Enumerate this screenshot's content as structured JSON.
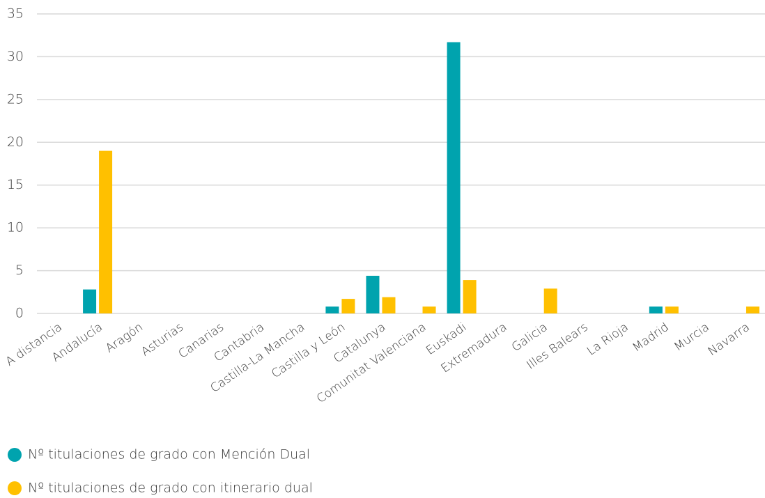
{
  "chart_data": {
    "type": "bar",
    "categories": [
      "A distancia",
      "Andalucía",
      "Aragón",
      "Asturias",
      "Canarias",
      "Cantabria",
      "Castilla-La Mancha",
      "Castilla y León",
      "Catalunya",
      "Comunitat Valenciana",
      "Euskadi",
      "Extremadura",
      "Galicia",
      "Illes Balears",
      "La Rioja",
      "Madrid",
      "Murcia",
      "Navarra"
    ],
    "series": [
      {
        "name": "Nº titulaciones de grado con Mención Dual",
        "color": "#00a3ae",
        "values": [
          0,
          2.8,
          0,
          0,
          0,
          0,
          0,
          0.8,
          4.4,
          0,
          31.7,
          0,
          0,
          0,
          0,
          0.8,
          0,
          0
        ]
      },
      {
        "name": "Nº titulaciones de grado con itinerario dual",
        "color": "#ffc000",
        "values": [
          0,
          19,
          0,
          0,
          0,
          0,
          0,
          1.7,
          1.9,
          0.8,
          3.9,
          0,
          2.9,
          0,
          0,
          0.8,
          0,
          0.8
        ]
      }
    ],
    "ylim": [
      0,
      35
    ],
    "yticks": [
      0,
      5,
      10,
      15,
      20,
      25,
      30,
      35
    ],
    "grid": true
  }
}
